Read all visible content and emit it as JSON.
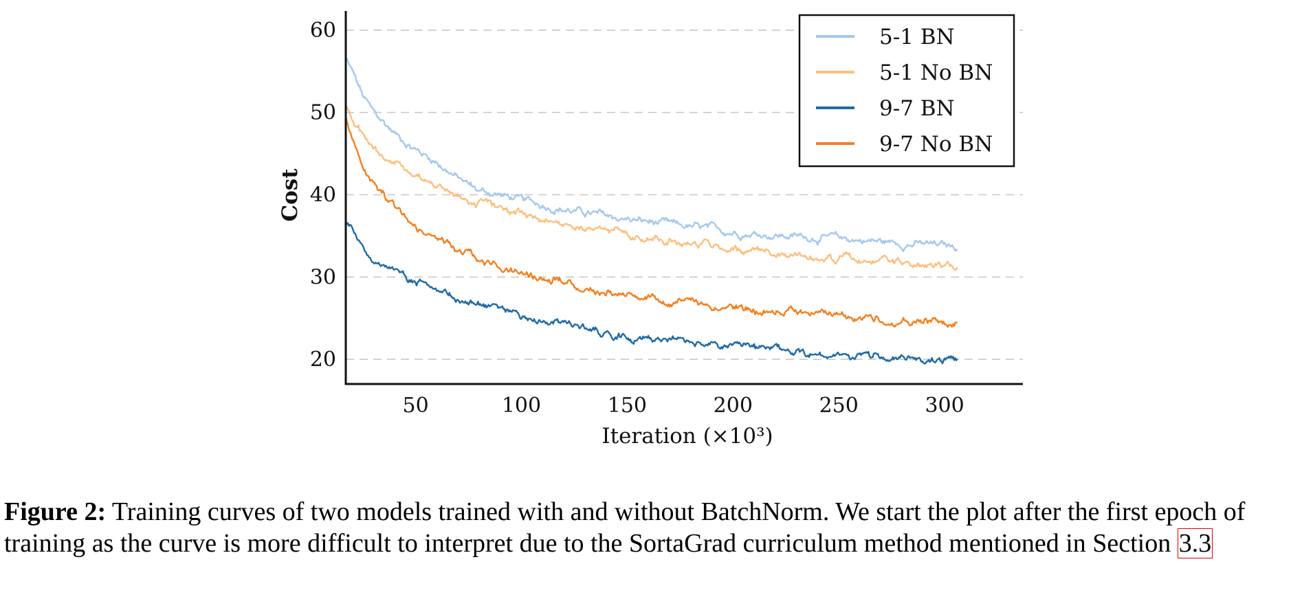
{
  "chart_data": {
    "type": "line",
    "xlabel": "Iteration (×10³)",
    "ylabel": "Cost",
    "xlim": [
      17,
      337
    ],
    "ylim": [
      17,
      62
    ],
    "x_ticks": [
      50,
      100,
      150,
      200,
      250,
      300
    ],
    "y_ticks": [
      20,
      30,
      40,
      50,
      60
    ],
    "grid": "horizontal dashed",
    "legend_position": "top-right",
    "series": [
      {
        "name": "5-1 BN",
        "color": "#a6c8ea",
        "x": [
          17,
          20,
          25,
          30,
          40,
          50,
          60,
          70,
          80,
          90,
          100,
          125,
          150,
          175,
          200,
          225,
          250,
          275,
          300,
          306
        ],
        "y": [
          56.5,
          55,
          52,
          50,
          47.5,
          45.5,
          44,
          42,
          40.5,
          40,
          39.3,
          38,
          37,
          36.2,
          35.5,
          35,
          34.7,
          34.2,
          33.8,
          33.6
        ]
      },
      {
        "name": "5-1 No BN",
        "color": "#fdbf7d",
        "x": [
          17,
          20,
          25,
          30,
          40,
          50,
          60,
          70,
          80,
          90,
          100,
          125,
          150,
          175,
          200,
          225,
          250,
          275,
          300,
          306
        ],
        "y": [
          50.5,
          49.5,
          47,
          45.5,
          44,
          42.5,
          41,
          40,
          39,
          38.5,
          37.8,
          36.5,
          35.2,
          34.3,
          33.5,
          32.8,
          32.2,
          31.8,
          31.2,
          31
        ]
      },
      {
        "name": "9-7 BN",
        "color": "#1f6aa5",
        "x": [
          17,
          20,
          25,
          30,
          40,
          50,
          60,
          70,
          80,
          90,
          100,
          125,
          150,
          175,
          200,
          225,
          250,
          275,
          300,
          306
        ],
        "y": [
          37,
          36,
          33.5,
          32,
          30.5,
          29.3,
          28.3,
          27.5,
          26.8,
          26,
          25.3,
          24,
          23,
          22.2,
          21.5,
          21,
          20.5,
          20.2,
          19.8,
          19.7
        ]
      },
      {
        "name": "9-7 No BN",
        "color": "#f57f1e",
        "x": [
          17,
          20,
          25,
          30,
          40,
          50,
          60,
          70,
          80,
          90,
          100,
          125,
          150,
          175,
          200,
          225,
          250,
          275,
          300,
          306
        ],
        "y": [
          49.5,
          47,
          43.5,
          41.5,
          38.5,
          36,
          34.5,
          33.2,
          32,
          31.2,
          30.3,
          29,
          27.8,
          27,
          26.2,
          25.6,
          25.2,
          24.8,
          24.5,
          24.4
        ]
      }
    ]
  },
  "caption": {
    "label": "Figure 2:",
    "text": " Training curves of two models trained with and without BatchNorm. We start the plot after the first epoch of training as the curve is more difficult to interpret due to the SortaGrad curriculum method mentioned in Section ",
    "ref": "3.3"
  }
}
